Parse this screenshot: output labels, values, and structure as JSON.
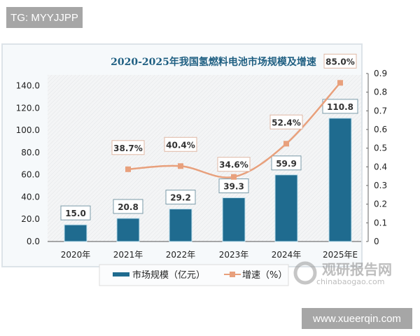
{
  "watermarks": {
    "top": "TG: MYYJJPP",
    "bottom": "www.xueerqin.com",
    "logo_cn": "观研报告网",
    "logo_en": "chinabaogao.com"
  },
  "chart_data": {
    "type": "bar",
    "title": "2020-2025年我国氢燃料电池市场规模及增速",
    "categories": [
      "2020年",
      "2021年",
      "2022年",
      "2023年",
      "2024年",
      "2025年E"
    ],
    "series": [
      {
        "name": "市场规模（亿元）",
        "type": "bar",
        "axis": "left",
        "color": "#1f6b8f",
        "values": [
          15.0,
          20.8,
          29.2,
          39.3,
          59.9,
          110.8
        ],
        "labels": [
          "15.0",
          "20.8",
          "29.2",
          "39.3",
          "59.9",
          "110.8"
        ]
      },
      {
        "name": "增速（%）",
        "type": "line",
        "axis": "right",
        "color": "#e8a07c",
        "values": [
          null,
          0.387,
          0.404,
          0.346,
          0.524,
          0.85
        ],
        "labels": [
          "",
          "38.7%",
          "40.4%",
          "34.6%",
          "52.4%",
          "85.0%"
        ]
      }
    ],
    "left_axis": {
      "ylim": [
        0,
        140
      ],
      "ticks": [
        "0.0",
        "20.0",
        "40.0",
        "60.0",
        "80.0",
        "100.0",
        "120.0",
        "140.0"
      ]
    },
    "right_axis": {
      "ylim": [
        0,
        0.9
      ],
      "ticks": [
        "0",
        "0.1",
        "0.2",
        "0.3",
        "0.4",
        "0.5",
        "0.6",
        "0.7",
        "0.8",
        "0.9"
      ]
    },
    "legend": "bottom"
  }
}
